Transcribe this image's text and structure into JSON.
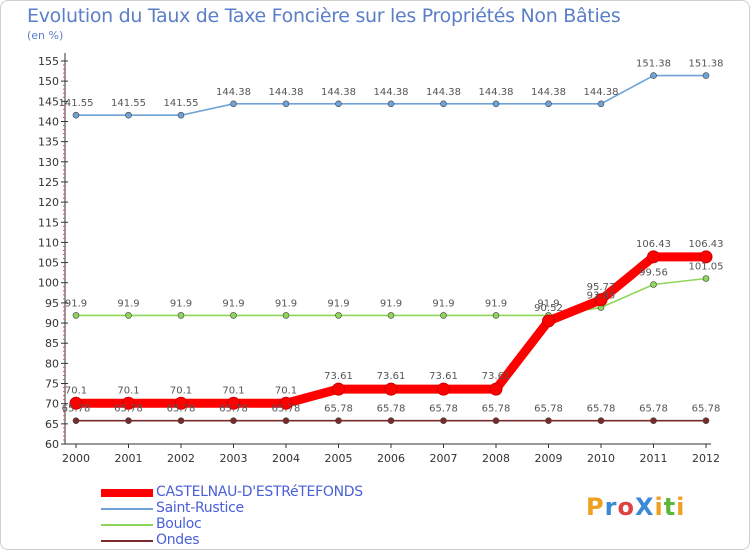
{
  "title": "Evolution du Taux de Taxe Foncière sur les Propriétés Non Bâties",
  "unit": "(en %)",
  "brand": "ProXiti",
  "chart_data": {
    "type": "line",
    "title": "Evolution du Taux de Taxe Foncière sur les Propriétés Non Bâties",
    "ylabel": "(en %)",
    "xlabel": "",
    "ylim": [
      60,
      155
    ],
    "ytick_step": 5,
    "grid": false,
    "legend_position": "bottom-left",
    "x": [
      "2000",
      "2001",
      "2002",
      "2003",
      "2004",
      "2005",
      "2006",
      "2007",
      "2008",
      "2009",
      "2010",
      "2011",
      "2012"
    ],
    "series": [
      {
        "name": "CASTELNAU-D'ESTRéTEFONDS",
        "color": "#ff0000",
        "values": [
          70.1,
          70.1,
          70.1,
          70.1,
          70.1,
          73.61,
          73.61,
          73.61,
          73.61,
          90.52,
          95.77,
          106.43,
          106.43
        ],
        "labels": [
          "70.1",
          "70.1",
          "70.1",
          "70.1",
          "70.1",
          "73.61",
          "73.61",
          "73.61",
          "73.61",
          "90.52",
          "95.77",
          "106.43",
          "106.43"
        ]
      },
      {
        "name": "Saint-Rustice",
        "color": "#6fa3d6",
        "values": [
          141.55,
          141.55,
          141.55,
          144.38,
          144.38,
          144.38,
          144.38,
          144.38,
          144.38,
          144.38,
          144.38,
          151.38,
          151.38
        ],
        "labels": [
          "141.55",
          "141.55",
          "141.55",
          "144.38",
          "144.38",
          "144.38",
          "144.38",
          "144.38",
          "144.38",
          "144.38",
          "144.38",
          "151.38",
          "151.38"
        ]
      },
      {
        "name": "Bouloc",
        "color": "#8ed65a",
        "values": [
          91.9,
          91.9,
          91.9,
          91.9,
          91.9,
          91.9,
          91.9,
          91.9,
          91.9,
          91.9,
          93.85,
          99.56,
          101.05
        ],
        "labels": [
          "91.9",
          "91.9",
          "91.9",
          "91.9",
          "91.9",
          "91.9",
          "91.9",
          "91.9",
          "91.9",
          "91.9",
          "93.85",
          "99.56",
          "101.05"
        ]
      },
      {
        "name": "Ondes",
        "color": "#7a2a2a",
        "values": [
          65.78,
          65.78,
          65.78,
          65.78,
          65.78,
          65.78,
          65.78,
          65.78,
          65.78,
          65.78,
          65.78,
          65.78,
          65.78
        ],
        "labels": [
          "65.78",
          "65.78",
          "65.78",
          "65.78",
          "65.78",
          "65.78",
          "65.78",
          "65.78",
          "65.78",
          "65.78",
          "65.78",
          "65.78",
          "65.78"
        ]
      }
    ]
  }
}
